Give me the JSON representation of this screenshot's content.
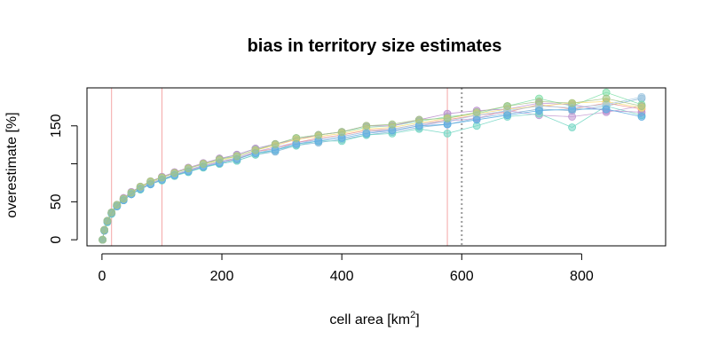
{
  "chart_data": {
    "type": "line",
    "title": "bias in territory size estimates",
    "xlabel": {
      "prefix": "cell area [km",
      "sup": "2",
      "suffix": "]"
    },
    "ylabel": "overestimate [%]",
    "xlim": [
      -25,
      940
    ],
    "ylim": [
      -8,
      200
    ],
    "x_ticks": [
      0,
      200,
      400,
      600,
      800
    ],
    "y_ticks": [
      0,
      50,
      150
    ],
    "grid": false,
    "x": [
      1,
      4,
      9,
      16,
      25,
      36,
      49,
      64,
      81,
      100,
      121,
      144,
      169,
      196,
      225,
      256,
      289,
      324,
      361,
      400,
      441,
      484,
      529,
      576,
      625,
      676,
      729,
      784,
      841,
      900
    ],
    "reference_lines": {
      "vertical_solid": [
        16,
        100,
        576
      ],
      "vertical_dotted": [
        600
      ],
      "solid_color": "#f4a6a6",
      "dotted_color": "#999999"
    },
    "series": [
      {
        "color": "#7fb3d5",
        "values": [
          0,
          12,
          24,
          35,
          44,
          52,
          60,
          67,
          73,
          79,
          84,
          90,
          96,
          100,
          104,
          112,
          116,
          124,
          128,
          132,
          138,
          142,
          148,
          152,
          160,
          166,
          172,
          170,
          176,
          186
        ]
      },
      {
        "color": "#f1948a",
        "values": [
          0,
          12,
          24,
          35,
          45,
          53,
          61,
          68,
          75,
          80,
          86,
          92,
          98,
          103,
          106,
          116,
          120,
          128,
          134,
          138,
          144,
          146,
          152,
          158,
          164,
          168,
          178,
          172,
          180,
          172
        ]
      },
      {
        "color": "#82e0aa",
        "values": [
          0,
          13,
          25,
          36,
          46,
          54,
          62,
          69,
          76,
          82,
          88,
          94,
          100,
          106,
          112,
          120,
          126,
          134,
          138,
          142,
          148,
          150,
          156,
          162,
          166,
          176,
          186,
          176,
          194,
          178
        ]
      },
      {
        "color": "#c39bd3",
        "values": [
          0,
          12,
          24,
          35,
          45,
          53,
          60,
          67,
          74,
          80,
          85,
          91,
          97,
          102,
          108,
          116,
          122,
          128,
          132,
          136,
          142,
          144,
          150,
          156,
          160,
          170,
          164,
          162,
          168,
          176
        ]
      },
      {
        "color": "#76d7c4",
        "values": [
          0,
          12,
          23,
          34,
          44,
          52,
          60,
          66,
          73,
          78,
          84,
          89,
          95,
          100,
          104,
          112,
          118,
          124,
          130,
          130,
          138,
          140,
          146,
          140,
          150,
          162,
          166,
          148,
          176,
          164
        ]
      },
      {
        "color": "#bb8fce",
        "values": [
          0,
          13,
          25,
          36,
          46,
          55,
          63,
          70,
          77,
          83,
          89,
          95,
          101,
          107,
          112,
          120,
          126,
          132,
          138,
          142,
          150,
          150,
          158,
          166,
          170,
          172,
          180,
          178,
          170,
          168
        ]
      },
      {
        "color": "#f7dc6f",
        "values": [
          0,
          12,
          24,
          35,
          45,
          54,
          62,
          69,
          76,
          82,
          88,
          94,
          100,
          104,
          110,
          118,
          124,
          132,
          136,
          140,
          146,
          148,
          154,
          160,
          166,
          172,
          176,
          180,
          182,
          174
        ]
      },
      {
        "color": "#a9cce3",
        "values": [
          0,
          12,
          24,
          35,
          45,
          53,
          61,
          68,
          75,
          80,
          86,
          92,
          98,
          103,
          108,
          114,
          120,
          126,
          132,
          136,
          142,
          146,
          152,
          156,
          164,
          170,
          176,
          174,
          178,
          188
        ]
      },
      {
        "color": "#5dade2",
        "values": [
          0,
          12,
          24,
          35,
          44,
          52,
          60,
          67,
          73,
          79,
          85,
          90,
          96,
          101,
          106,
          114,
          118,
          126,
          130,
          134,
          140,
          144,
          150,
          152,
          158,
          164,
          170,
          172,
          172,
          162
        ]
      },
      {
        "color": "#a3c585",
        "values": [
          0,
          13,
          25,
          36,
          46,
          54,
          62,
          70,
          77,
          82,
          88,
          94,
          100,
          106,
          110,
          118,
          126,
          134,
          138,
          142,
          150,
          152,
          158,
          160,
          168,
          176,
          182,
          180,
          186,
          176
        ]
      }
    ]
  }
}
